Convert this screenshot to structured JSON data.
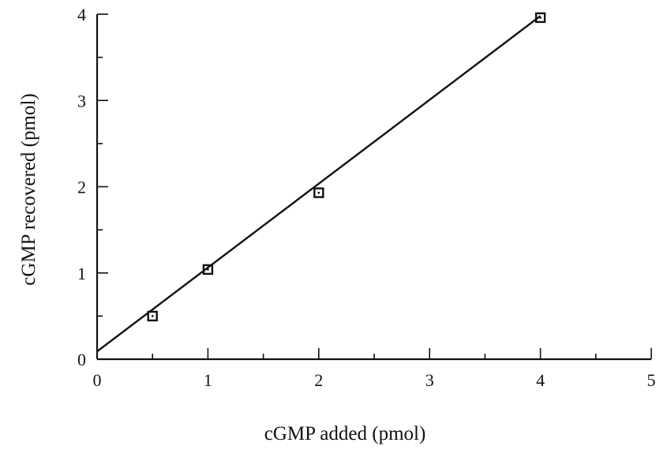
{
  "chart_data": {
    "type": "scatter",
    "xlabel": "cGMP added (pmol)",
    "ylabel": "cGMP recovered (pmol)",
    "xlim": [
      0,
      5
    ],
    "ylim": [
      0,
      4
    ],
    "x_ticks": [
      "0",
      "1",
      "2",
      "3",
      "4",
      "5"
    ],
    "y_ticks": [
      "0",
      "1",
      "2",
      "3",
      "4"
    ],
    "grid": false,
    "legend": "none",
    "series": [
      {
        "marker": "open-square",
        "x": [
          0.5,
          1,
          2,
          4
        ],
        "y": [
          0.5,
          1.04,
          1.93,
          3.96
        ]
      }
    ],
    "fit_line": {
      "x": [
        0,
        4
      ],
      "y": [
        0.09,
        3.98
      ]
    }
  }
}
